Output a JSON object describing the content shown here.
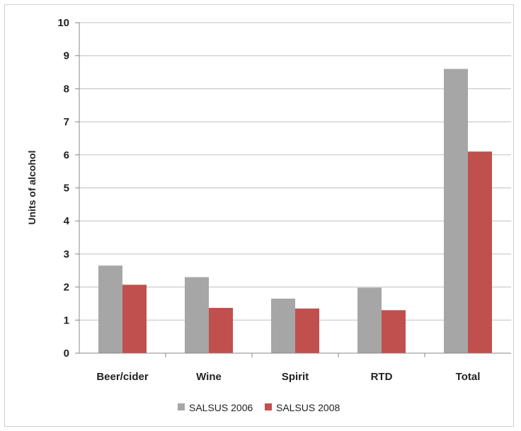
{
  "chart_data": {
    "type": "bar",
    "categories": [
      "Beer/cider",
      "Wine",
      "Spirit",
      "RTD",
      "Total"
    ],
    "series": [
      {
        "name": "SALSUS 2006",
        "values": [
          2.65,
          2.3,
          1.65,
          1.98,
          8.6
        ],
        "color": "#a6a6a6"
      },
      {
        "name": "SALSUS 2008",
        "values": [
          2.07,
          1.37,
          1.35,
          1.3,
          6.1
        ],
        "color": "#c0504d"
      }
    ],
    "ylabel": "Units of alcohol",
    "ylim": [
      0,
      10
    ],
    "yticks": [
      0,
      1,
      2,
      3,
      4,
      5,
      6,
      7,
      8,
      9,
      10
    ],
    "grid": true,
    "legend_position": "bottom"
  }
}
